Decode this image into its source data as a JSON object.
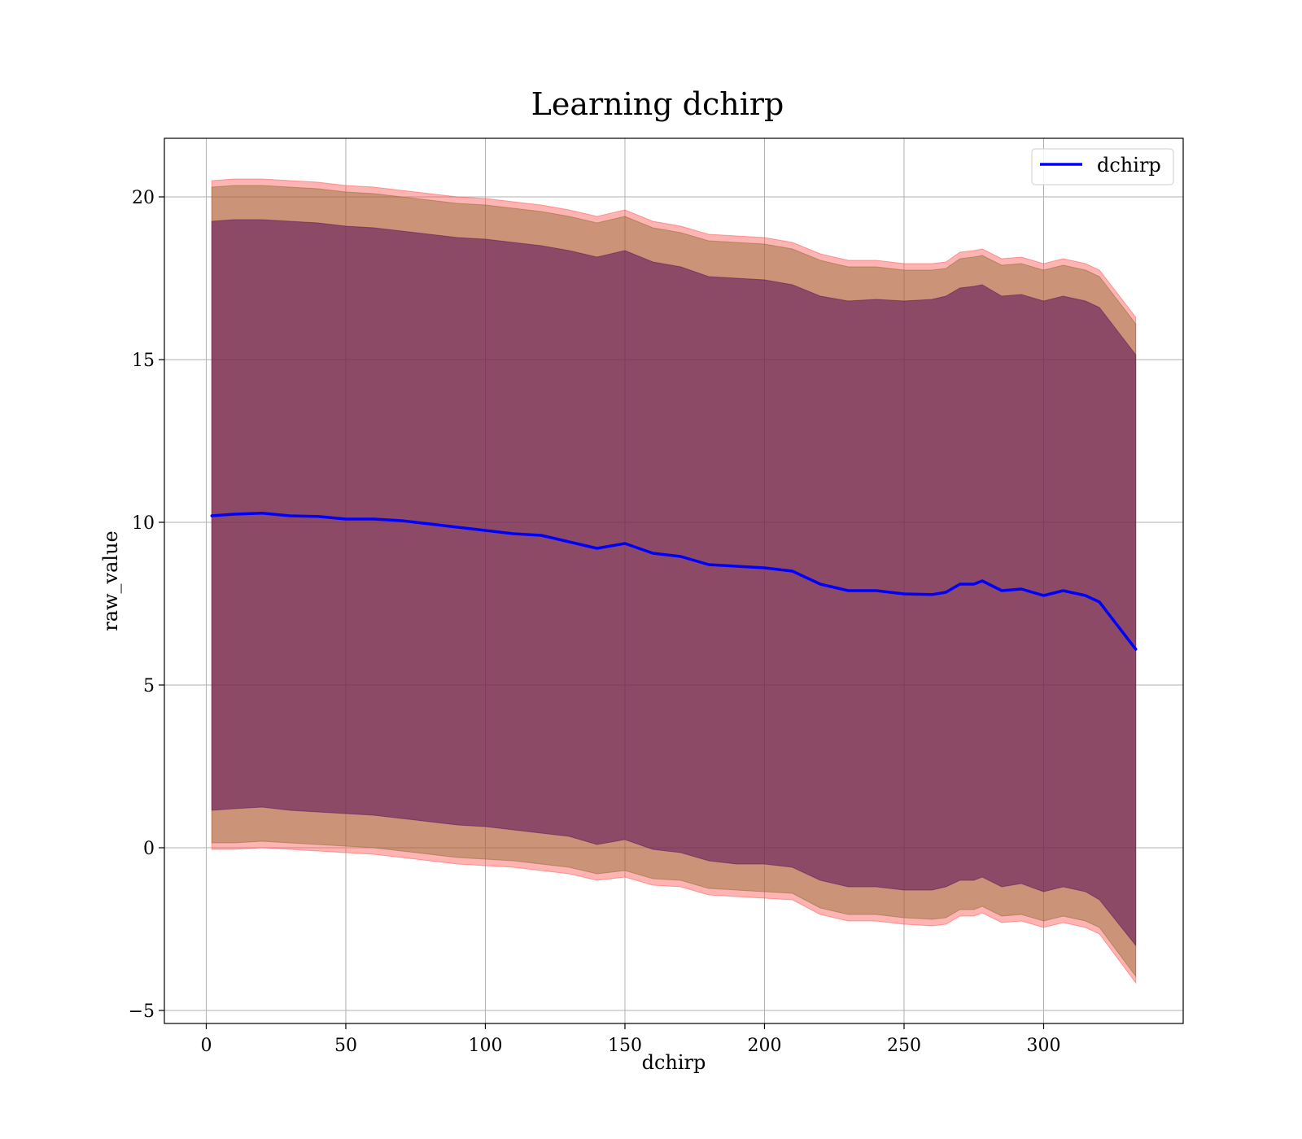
{
  "chart_data": {
    "type": "line",
    "title": "Learning dchirp",
    "xlabel": "dchirp",
    "ylabel": "raw_value",
    "xlim": [
      -15,
      350
    ],
    "ylim": [
      -5.4,
      21.8
    ],
    "xticks": [
      0,
      50,
      100,
      150,
      200,
      250,
      300
    ],
    "yticks": [
      -5,
      0,
      5,
      10,
      15,
      20
    ],
    "xtick_labels": [
      "0",
      "50",
      "100",
      "150",
      "200",
      "250",
      "300"
    ],
    "ytick_labels": [
      "−5",
      "0",
      "5",
      "10",
      "15",
      "20"
    ],
    "grid": true,
    "legend": {
      "position": "top-right",
      "entries": [
        "dchirp"
      ]
    },
    "colors": {
      "mean_line": "#0000ff",
      "outer_band": "#ff4d4d",
      "middle_band": "#8b6a2e",
      "inner_band": "#5a0f5a"
    },
    "series": [
      {
        "name": "dchirp",
        "x": [
          2,
          10,
          20,
          30,
          40,
          50,
          60,
          70,
          80,
          90,
          100,
          110,
          120,
          130,
          140,
          150,
          160,
          170,
          180,
          190,
          200,
          210,
          220,
          230,
          240,
          250,
          260,
          265,
          270,
          275,
          278,
          285,
          292,
          300,
          307,
          315,
          320,
          333
        ],
        "mean": [
          10.2,
          10.25,
          10.28,
          10.2,
          10.18,
          10.1,
          10.1,
          10.05,
          9.95,
          9.85,
          9.75,
          9.65,
          9.6,
          9.4,
          9.2,
          9.35,
          9.05,
          8.95,
          8.7,
          8.65,
          8.6,
          8.5,
          8.1,
          7.9,
          7.9,
          7.8,
          7.78,
          7.85,
          8.1,
          8.1,
          8.2,
          7.9,
          7.95,
          7.75,
          7.9,
          7.75,
          7.55,
          6.1
        ]
      }
    ],
    "bands": [
      {
        "level": "outer",
        "x": [
          2,
          10,
          20,
          30,
          40,
          50,
          60,
          70,
          80,
          90,
          100,
          110,
          120,
          130,
          140,
          150,
          160,
          170,
          180,
          190,
          200,
          210,
          220,
          230,
          240,
          250,
          260,
          265,
          270,
          275,
          278,
          285,
          292,
          300,
          307,
          315,
          320,
          333
        ],
        "upper": [
          20.5,
          20.55,
          20.55,
          20.5,
          20.45,
          20.35,
          20.3,
          20.2,
          20.1,
          20.0,
          19.95,
          19.85,
          19.75,
          19.6,
          19.4,
          19.6,
          19.25,
          19.1,
          18.85,
          18.8,
          18.75,
          18.6,
          18.25,
          18.05,
          18.05,
          17.95,
          17.95,
          18.0,
          18.3,
          18.35,
          18.4,
          18.1,
          18.15,
          17.95,
          18.1,
          17.95,
          17.75,
          16.3
        ],
        "lower": [
          -0.05,
          -0.05,
          0.0,
          -0.05,
          -0.1,
          -0.15,
          -0.2,
          -0.3,
          -0.4,
          -0.5,
          -0.55,
          -0.6,
          -0.7,
          -0.8,
          -1.0,
          -0.9,
          -1.15,
          -1.2,
          -1.45,
          -1.5,
          -1.55,
          -1.6,
          -2.05,
          -2.25,
          -2.25,
          -2.35,
          -2.4,
          -2.35,
          -2.1,
          -2.1,
          -2.0,
          -2.3,
          -2.25,
          -2.45,
          -2.3,
          -2.45,
          -2.65,
          -4.15
        ]
      },
      {
        "level": "middle",
        "x": [
          2,
          10,
          20,
          30,
          40,
          50,
          60,
          70,
          80,
          90,
          100,
          110,
          120,
          130,
          140,
          150,
          160,
          170,
          180,
          190,
          200,
          210,
          220,
          230,
          240,
          250,
          260,
          265,
          270,
          275,
          278,
          285,
          292,
          300,
          307,
          315,
          320,
          333
        ],
        "upper": [
          20.3,
          20.35,
          20.35,
          20.3,
          20.25,
          20.15,
          20.1,
          20.0,
          19.9,
          19.8,
          19.75,
          19.65,
          19.55,
          19.4,
          19.2,
          19.4,
          19.05,
          18.9,
          18.65,
          18.6,
          18.55,
          18.4,
          18.05,
          17.85,
          17.85,
          17.75,
          17.75,
          17.8,
          18.1,
          18.15,
          18.2,
          17.9,
          17.95,
          17.75,
          17.9,
          17.75,
          17.55,
          16.1
        ],
        "lower": [
          0.15,
          0.15,
          0.2,
          0.15,
          0.1,
          0.05,
          0.0,
          -0.1,
          -0.2,
          -0.3,
          -0.35,
          -0.4,
          -0.5,
          -0.6,
          -0.8,
          -0.7,
          -0.95,
          -1.0,
          -1.25,
          -1.3,
          -1.35,
          -1.4,
          -1.85,
          -2.05,
          -2.05,
          -2.15,
          -2.2,
          -2.15,
          -1.9,
          -1.9,
          -1.8,
          -2.1,
          -2.05,
          -2.25,
          -2.1,
          -2.25,
          -2.45,
          -3.95
        ]
      },
      {
        "level": "inner",
        "x": [
          2,
          10,
          20,
          30,
          40,
          50,
          60,
          70,
          80,
          90,
          100,
          110,
          120,
          130,
          140,
          150,
          160,
          170,
          180,
          190,
          200,
          210,
          220,
          230,
          240,
          250,
          260,
          265,
          270,
          275,
          278,
          285,
          292,
          300,
          307,
          315,
          320,
          333
        ],
        "upper": [
          19.25,
          19.3,
          19.3,
          19.25,
          19.2,
          19.1,
          19.05,
          18.95,
          18.85,
          18.75,
          18.7,
          18.6,
          18.5,
          18.35,
          18.15,
          18.35,
          18.0,
          17.85,
          17.55,
          17.5,
          17.45,
          17.3,
          16.95,
          16.8,
          16.85,
          16.8,
          16.85,
          16.95,
          17.2,
          17.25,
          17.3,
          16.95,
          17.0,
          16.8,
          16.95,
          16.8,
          16.6,
          15.15
        ],
        "lower": [
          1.15,
          1.2,
          1.25,
          1.15,
          1.1,
          1.05,
          1.0,
          0.9,
          0.8,
          0.7,
          0.65,
          0.55,
          0.45,
          0.35,
          0.1,
          0.25,
          -0.05,
          -0.15,
          -0.4,
          -0.5,
          -0.5,
          -0.6,
          -1.0,
          -1.2,
          -1.2,
          -1.3,
          -1.3,
          -1.2,
          -1.0,
          -1.0,
          -0.9,
          -1.2,
          -1.1,
          -1.35,
          -1.2,
          -1.35,
          -1.6,
          -3.0
        ]
      }
    ]
  }
}
